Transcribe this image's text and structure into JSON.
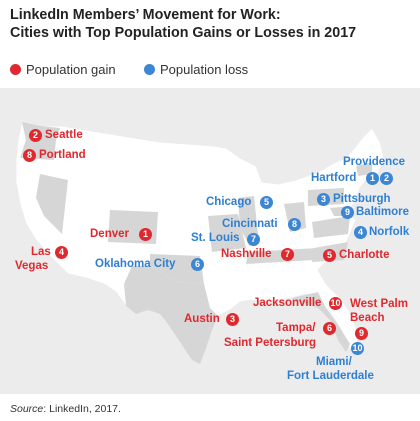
{
  "title": {
    "line1": "LinkedIn Members’ Movement for Work:",
    "line2": "Cities with Top Population Gains or Losses in 2017"
  },
  "legend": {
    "gain_label": "Population gain",
    "loss_label": "Population loss",
    "gain_color": "#e0282f",
    "loss_color": "#3c86d3"
  },
  "cities": {
    "seattle": {
      "name": "Seattle",
      "rank": "2",
      "type": "gain"
    },
    "portland": {
      "name": "Portland",
      "rank": "8",
      "type": "gain"
    },
    "las_vegas_1": "Las",
    "las_vegas_2": "Vegas",
    "las_vegas_rank": "4",
    "denver": {
      "name": "Denver",
      "rank": "1",
      "type": "gain"
    },
    "austin": {
      "name": "Austin",
      "rank": "3",
      "type": "gain"
    },
    "nashville": {
      "name": "Nashville",
      "rank": "7",
      "type": "gain"
    },
    "charlotte": {
      "name": "Charlotte",
      "rank": "5",
      "type": "gain"
    },
    "jacksonville": {
      "name": "Jacksonville",
      "rank": "10",
      "type": "gain"
    },
    "tampa_1": "Tampa/",
    "tampa_2": "Saint Petersburg",
    "tampa_rank": "6",
    "west_palm_1": "West Palm",
    "west_palm_2": "Beach",
    "west_palm_rank": "9",
    "chicago": {
      "name": "Chicago",
      "rank": "5",
      "type": "loss"
    },
    "oklahoma_city": {
      "name": "Oklahoma City",
      "rank": "6",
      "type": "loss"
    },
    "st_louis": {
      "name": "St. Louis",
      "rank": "7",
      "type": "loss"
    },
    "cincinnati": {
      "name": "Cincinnati",
      "rank": "8",
      "type": "loss"
    },
    "pittsburgh": {
      "name": "Pittsburgh",
      "rank": "3",
      "type": "loss"
    },
    "baltimore": {
      "name": "Baltimore",
      "rank": "9",
      "type": "loss"
    },
    "norfolk": {
      "name": "Norfolk",
      "rank": "4",
      "type": "loss"
    },
    "providence": {
      "name": "Providence",
      "rank": "2",
      "type": "loss"
    },
    "hartford": {
      "name": "Hartford",
      "rank": "1",
      "type": "loss"
    },
    "miami_1": "Miami/",
    "miami_2": "Fort Lauderdale",
    "miami_rank": "10"
  },
  "source": {
    "label": "Source",
    "text": ": LinkedIn, 2017."
  }
}
